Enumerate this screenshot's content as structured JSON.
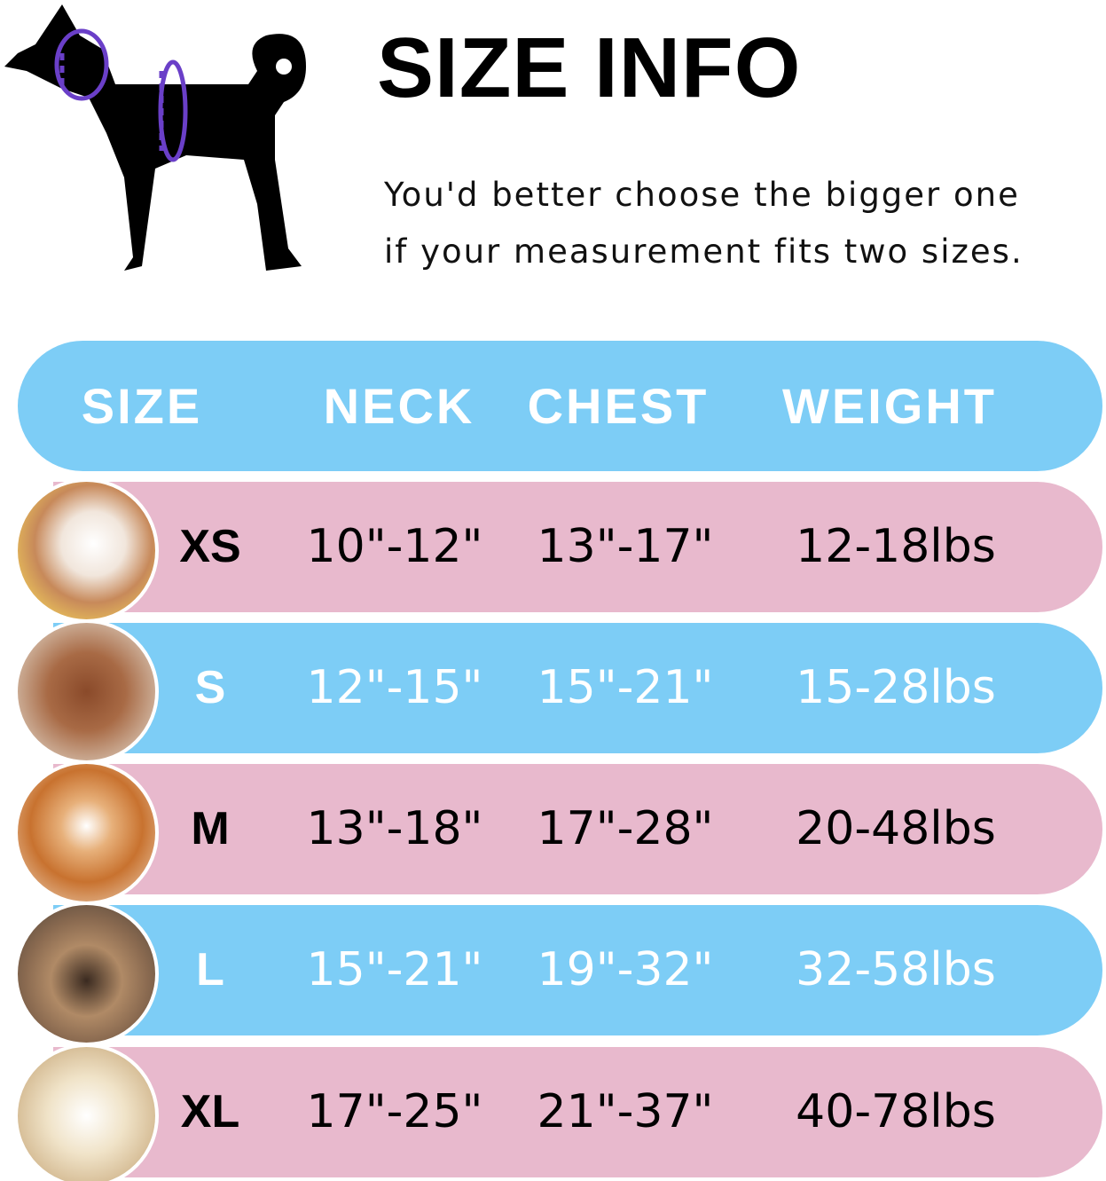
{
  "title": "SIZE INFO",
  "note_lines": [
    "You'd better choose the bigger one",
    "if your measurement fits two sizes."
  ],
  "colors": {
    "header": "#7dcdf6",
    "pink_row": "#e8b9cd",
    "blue_row": "#7dcdf6",
    "measure_ring": "#6a3fc8"
  },
  "table": {
    "headers": [
      "SIZE",
      "NECK",
      "CHEST",
      "WEIGHT"
    ],
    "rows": [
      {
        "size": "XS",
        "neck": "10\"-12\"",
        "chest": "13\"-17\"",
        "weight": "12-18lbs",
        "color": "pink",
        "photo": "pomeranian-photo"
      },
      {
        "size": "S",
        "neck": "12\"-15\"",
        "chest": "15\"-21\"",
        "weight": "15-28lbs",
        "color": "blue",
        "photo": "poodle-photo"
      },
      {
        "size": "M",
        "neck": "13\"-18\"",
        "chest": "17\"-28\"",
        "weight": "20-48lbs",
        "color": "pink",
        "photo": "shiba-photo"
      },
      {
        "size": "L",
        "neck": "15\"-21\"",
        "chest": "19\"-32\"",
        "weight": "32-58lbs",
        "color": "blue",
        "photo": "french-bulldog-photo"
      },
      {
        "size": "XL",
        "neck": "17\"-25\"",
        "chest": "21\"-37\"",
        "weight": "40-78lbs",
        "color": "pink",
        "photo": "labrador-photo"
      }
    ]
  }
}
